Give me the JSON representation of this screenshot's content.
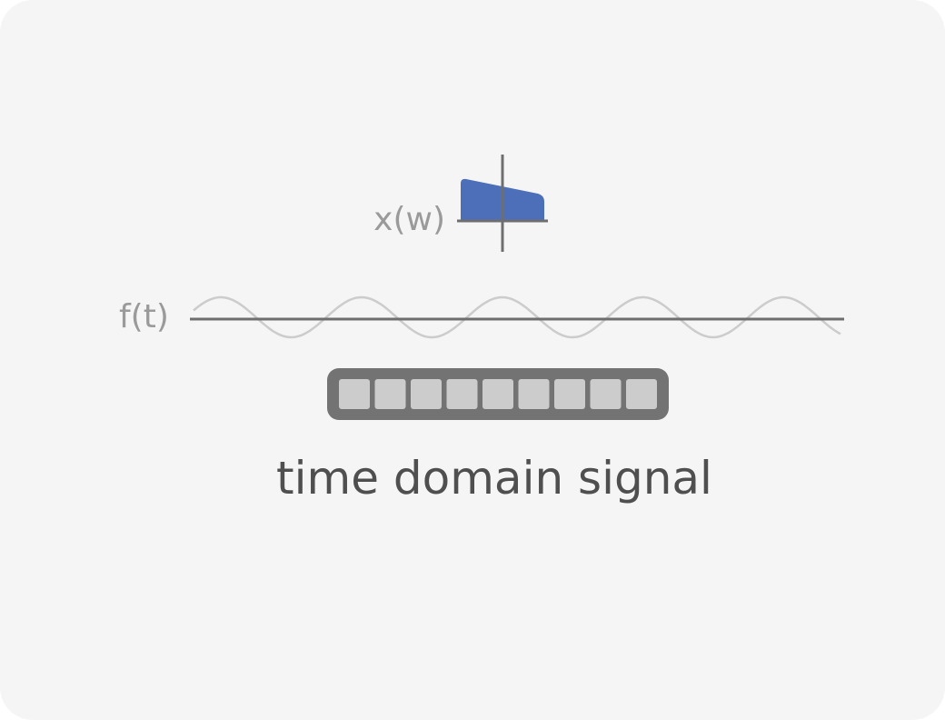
{
  "frequency_label": "x(w)",
  "time_label": "f(t)",
  "caption": "time domain signal",
  "colors": {
    "background": "#f5f5f5",
    "axis": "#6e6e6e",
    "spectrum_fill": "#4d6fba",
    "wave": "#cccccc",
    "buffer_frame": "#737373",
    "buffer_cell": "#cccccc",
    "label": "#9a9a9a",
    "caption": "#4f4f4f"
  },
  "buffer": {
    "cell_count": 9
  },
  "wave": {
    "cycles": 4.6
  }
}
